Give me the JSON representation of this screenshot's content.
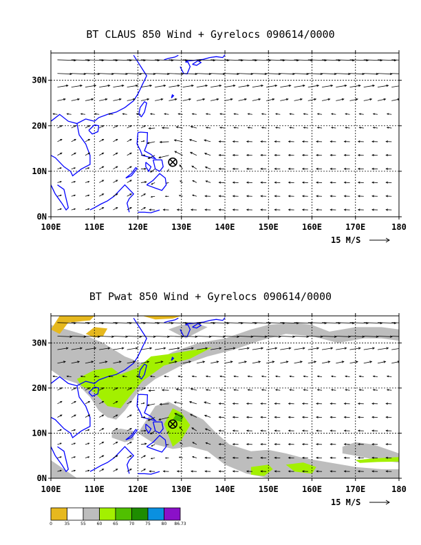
{
  "panels": [
    {
      "title": "BT CLAUS 850 Wind + Gyrelocs 090614/0000",
      "x_ticks": [
        "100E",
        "110E",
        "120E",
        "130E",
        "140E",
        "150E",
        "160E",
        "170E",
        "180"
      ],
      "y_ticks": [
        "0N",
        "10N",
        "20N",
        "30N"
      ],
      "vector_label": "15 M/S",
      "storm_marker": {
        "lon": 128,
        "lat": 12
      }
    },
    {
      "title": "BT Pwat 850 Wind + Gyrelocs 090614/0000",
      "x_ticks": [
        "100E",
        "110E",
        "120E",
        "130E",
        "140E",
        "150E",
        "160E",
        "170E",
        "180"
      ],
      "y_ticks": [
        "0N",
        "10N",
        "20N",
        "30N"
      ],
      "vector_label": "15 M/S",
      "storm_marker": {
        "lon": 128,
        "lat": 12
      }
    }
  ],
  "colorbar": {
    "labels": [
      "0",
      "35",
      "55",
      "60",
      "65",
      "70",
      "75",
      "80",
      "86.73"
    ],
    "colors": [
      "#e6b81e",
      "#ffffff",
      "#bdbdbd",
      "#a3f000",
      "#50c000",
      "#1e8c00",
      "#0a90e0",
      "#8a10c8"
    ]
  },
  "map": {
    "lon_range": [
      100,
      180
    ],
    "lat_range": [
      0,
      36
    ],
    "coast_color": "#0000ff"
  }
}
